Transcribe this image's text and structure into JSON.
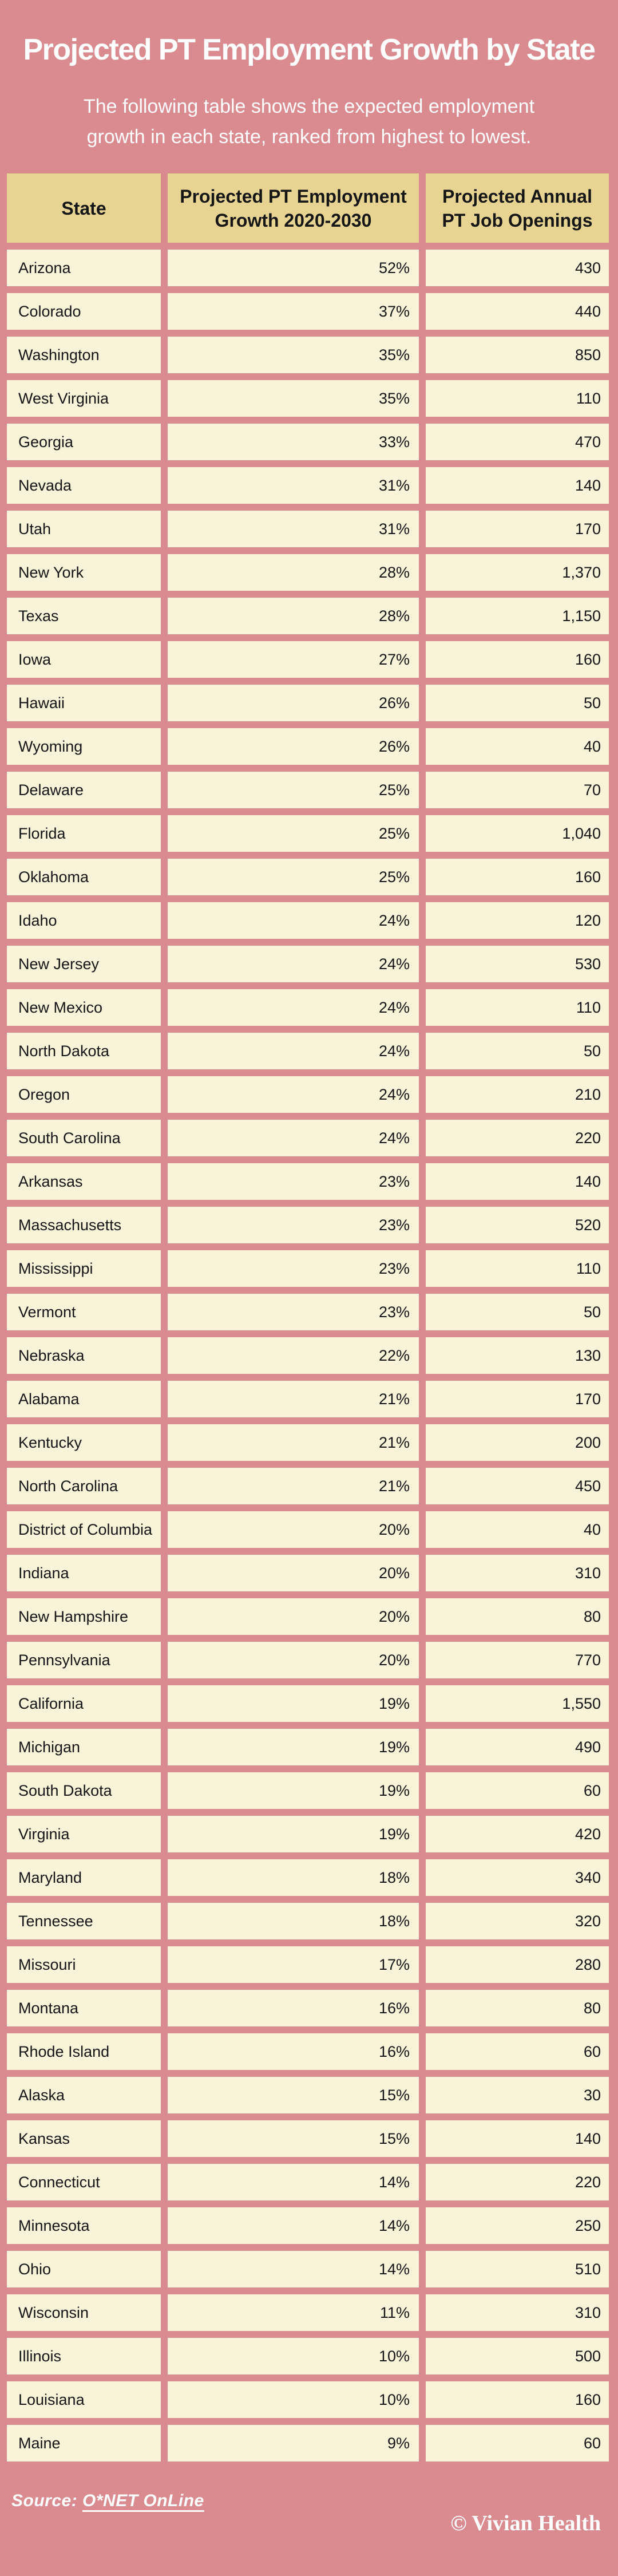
{
  "header": {
    "title": "Projected PT Employment Growth by State",
    "subtitle": "The following table shows the expected employment growth in each state, ranked from highest to lowest."
  },
  "table": {
    "columns": [
      "State",
      "Projected PT Employment Growth 2020-2030",
      "Projected Annual PT Job Openings"
    ]
  },
  "chart_data": {
    "type": "table",
    "title": "Projected PT Employment Growth by State",
    "columns": [
      "State",
      "Projected PT Employment Growth 2020-2030",
      "Projected Annual PT Job Openings"
    ],
    "rows": [
      [
        "Arizona",
        "52%",
        "430"
      ],
      [
        "Colorado",
        "37%",
        "440"
      ],
      [
        "Washington",
        "35%",
        "850"
      ],
      [
        "West Virginia",
        "35%",
        "110"
      ],
      [
        "Georgia",
        "33%",
        "470"
      ],
      [
        "Nevada",
        "31%",
        "140"
      ],
      [
        "Utah",
        "31%",
        "170"
      ],
      [
        "New York",
        "28%",
        "1,370"
      ],
      [
        "Texas",
        "28%",
        "1,150"
      ],
      [
        "Iowa",
        "27%",
        "160"
      ],
      [
        "Hawaii",
        "26%",
        "50"
      ],
      [
        "Wyoming",
        "26%",
        "40"
      ],
      [
        "Delaware",
        "25%",
        "70"
      ],
      [
        "Florida",
        "25%",
        "1,040"
      ],
      [
        "Oklahoma",
        "25%",
        "160"
      ],
      [
        "Idaho",
        "24%",
        "120"
      ],
      [
        "New Jersey",
        "24%",
        "530"
      ],
      [
        "New Mexico",
        "24%",
        "110"
      ],
      [
        "North Dakota",
        "24%",
        "50"
      ],
      [
        "Oregon",
        "24%",
        "210"
      ],
      [
        "South Carolina",
        "24%",
        "220"
      ],
      [
        "Arkansas",
        "23%",
        "140"
      ],
      [
        "Massachusetts",
        "23%",
        "520"
      ],
      [
        "Mississippi",
        "23%",
        "110"
      ],
      [
        "Vermont",
        "23%",
        "50"
      ],
      [
        "Nebraska",
        "22%",
        "130"
      ],
      [
        "Alabama",
        "21%",
        "170"
      ],
      [
        "Kentucky",
        "21%",
        "200"
      ],
      [
        "North Carolina",
        "21%",
        "450"
      ],
      [
        "District of Columbia",
        "20%",
        "40"
      ],
      [
        "Indiana",
        "20%",
        "310"
      ],
      [
        "New Hampshire",
        "20%",
        "80"
      ],
      [
        "Pennsylvania",
        "20%",
        "770"
      ],
      [
        "California",
        "19%",
        "1,550"
      ],
      [
        "Michigan",
        "19%",
        "490"
      ],
      [
        "South Dakota",
        "19%",
        "60"
      ],
      [
        "Virginia",
        "19%",
        "420"
      ],
      [
        "Maryland",
        "18%",
        "340"
      ],
      [
        "Tennessee",
        "18%",
        "320"
      ],
      [
        "Missouri",
        "17%",
        "280"
      ],
      [
        "Montana",
        "16%",
        "80"
      ],
      [
        "Rhode Island",
        "16%",
        "60"
      ],
      [
        "Alaska",
        "15%",
        "30"
      ],
      [
        "Kansas",
        "15%",
        "140"
      ],
      [
        "Connecticut",
        "14%",
        "220"
      ],
      [
        "Minnesota",
        "14%",
        "250"
      ],
      [
        "Ohio",
        "14%",
        "510"
      ],
      [
        "Wisconsin",
        "11%",
        "310"
      ],
      [
        "Illinois",
        "10%",
        "500"
      ],
      [
        "Louisiana",
        "10%",
        "160"
      ],
      [
        "Maine",
        "9%",
        "60"
      ]
    ]
  },
  "footer": {
    "source_label": "Source:",
    "source_link": "O*NET OnLine",
    "copyright": "© Vivian Health"
  },
  "colors": {
    "background": "#d98b8f",
    "header_cell": "#e8d492",
    "data_cell": "#f8f3d9",
    "text_dark": "#151515",
    "text_light": "#ffffff"
  }
}
